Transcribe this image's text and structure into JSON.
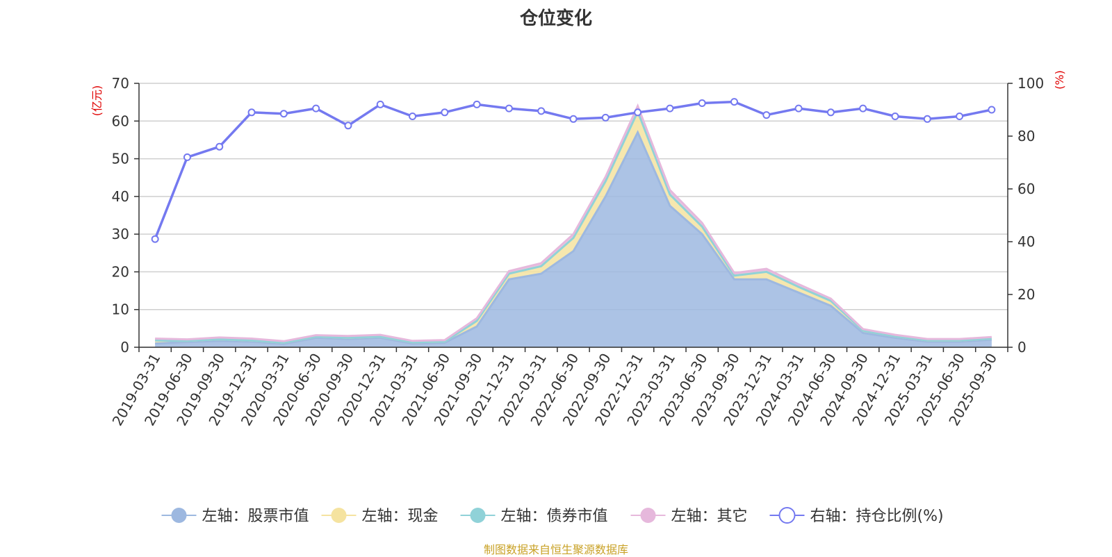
{
  "title": "仓位变化",
  "source": "制图数据来自恒生聚源数据库",
  "chart_data": {
    "type": "area",
    "title": "仓位变化",
    "left_axis_unit": "(亿元)",
    "right_axis_unit": "(%)",
    "left_ylim": [
      0,
      70
    ],
    "left_ticks": [
      "0",
      "10",
      "20",
      "30",
      "40",
      "50",
      "60",
      "70"
    ],
    "right_ylim": [
      0,
      100
    ],
    "right_ticks": [
      "0",
      "20",
      "40",
      "60",
      "80",
      "100"
    ],
    "categories": [
      "2019-03-31",
      "2019-06-30",
      "2019-09-30",
      "2019-12-31",
      "2020-03-31",
      "2020-06-30",
      "2020-09-30",
      "2020-12-31",
      "2021-03-31",
      "2021-06-30",
      "2021-09-30",
      "2021-12-31",
      "2022-03-31",
      "2022-06-30",
      "2022-09-30",
      "2022-12-31",
      "2023-03-31",
      "2023-06-30",
      "2023-09-30",
      "2023-12-31",
      "2024-03-31",
      "2024-06-30",
      "2024-09-30",
      "2024-12-31",
      "2025-03-31",
      "2025-06-30",
      "2025-09-30"
    ],
    "stacked_series": [
      {
        "name": "左轴：股票市值",
        "color": "#9db8e0",
        "values": [
          1.0,
          1.4,
          1.7,
          1.5,
          0.9,
          2.5,
          2.2,
          2.5,
          1.0,
          1.2,
          5.5,
          18.0,
          19.5,
          25.5,
          40.0,
          57.0,
          37.5,
          30.0,
          18.0,
          18.0,
          14.5,
          11.0,
          3.8,
          2.5,
          1.5,
          1.5,
          2.0
        ]
      },
      {
        "name": "左轴：现金",
        "color": "#f5e3a0",
        "values": [
          0.8,
          0.3,
          0.4,
          0.3,
          0.3,
          0.3,
          0.3,
          0.3,
          0.3,
          0.3,
          1.5,
          1.5,
          2.0,
          3.5,
          4.0,
          5.5,
          3.0,
          2.0,
          1.0,
          2.0,
          1.5,
          1.3,
          0.6,
          0.4,
          0.3,
          0.3,
          0.3
        ]
      },
      {
        "name": "左轴：债券市值",
        "color": "#90d2d8",
        "values": [
          0,
          0,
          0,
          0,
          0,
          0,
          0,
          0,
          0,
          0,
          0,
          0,
          0,
          0,
          0,
          0,
          0,
          0,
          0,
          0,
          0,
          0,
          0,
          0,
          0,
          0,
          0
        ]
      },
      {
        "name": "左轴：其它",
        "color": "#e6b8dc",
        "values": [
          0.5,
          0.4,
          0.5,
          0.5,
          0.4,
          0.4,
          0.5,
          0.5,
          0.4,
          0.4,
          0.7,
          0.7,
          0.8,
          1.0,
          1.2,
          1.5,
          1.2,
          1.0,
          0.7,
          0.8,
          0.7,
          0.6,
          0.4,
          0.4,
          0.4,
          0.4,
          0.4
        ]
      }
    ],
    "line_series": {
      "name": "右轴：持仓比例(%)",
      "color": "#7479f0",
      "values": [
        41,
        72,
        76,
        89,
        88.5,
        90.5,
        84,
        92,
        87.5,
        89,
        92,
        90.5,
        89.5,
        86.5,
        87,
        89,
        90.5,
        92.5,
        93,
        88,
        90.5,
        89,
        90.5,
        87.5,
        86.5,
        87.5,
        90
      ]
    }
  }
}
